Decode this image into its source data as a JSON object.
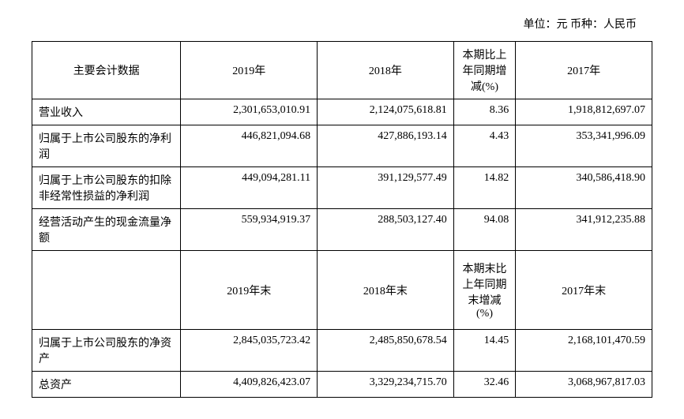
{
  "unit_line": "单位：元  币种：人民币",
  "table": {
    "headers1": {
      "c0": "主要会计数据",
      "c1": "2019年",
      "c2": "2018年",
      "c3": "本期比上年同期增减(%)",
      "c4": "2017年"
    },
    "rows1": [
      {
        "label": "营业收入",
        "v2019": "2,301,653,010.91",
        "v2018": "2,124,075,618.81",
        "pct": "8.36",
        "v2017": "1,918,812,697.07"
      },
      {
        "label": "归属于上市公司股东的净利润",
        "v2019": "446,821,094.68",
        "v2018": "427,886,193.14",
        "pct": "4.43",
        "v2017": "353,341,996.09"
      },
      {
        "label": "归属于上市公司股东的扣除非经常性损益的净利润",
        "v2019": "449,094,281.11",
        "v2018": "391,129,577.49",
        "pct": "14.82",
        "v2017": "340,586,418.90"
      },
      {
        "label": "经营活动产生的现金流量净额",
        "v2019": "559,934,919.37",
        "v2018": "288,503,127.40",
        "pct": "94.08",
        "v2017": "341,912,235.88"
      }
    ],
    "headers2": {
      "c0": "",
      "c1": "2019年末",
      "c2": "2018年末",
      "c3": "本期末比上年同期末增减(%)",
      "c4": "2017年末"
    },
    "rows2": [
      {
        "label": "归属于上市公司股东的净资产",
        "v2019": "2,845,035,723.42",
        "v2018": "2,485,850,678.54",
        "pct": "14.45",
        "v2017": "2,168,101,470.59"
      },
      {
        "label": "总资产",
        "v2019": "4,409,826,423.07",
        "v2018": "3,329,234,715.70",
        "pct": "32.46",
        "v2017": "3,068,967,817.03"
      }
    ]
  }
}
